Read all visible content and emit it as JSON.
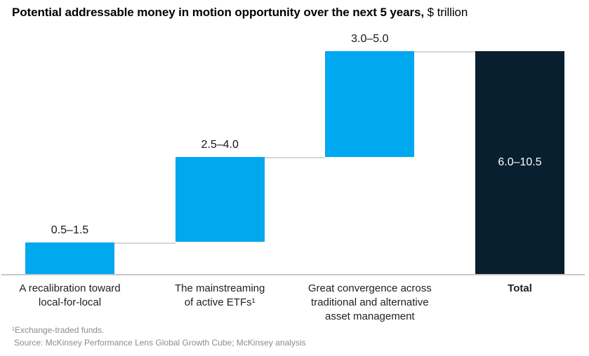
{
  "title": {
    "main": "Potential addressable money in motion opportunity over the next 5 years,",
    "unit": " $ trillion"
  },
  "chart_data": {
    "type": "bar",
    "subtype": "waterfall",
    "title": "Potential addressable money in motion opportunity over the next 5 years, $ trillion",
    "unit": "$ trillion",
    "ylim": [
      0,
      10.5
    ],
    "grid": false,
    "legend": "none",
    "scale_note": "cumulative stacking uses the high end of each range; total bar spans 0 to 10.5",
    "categories": [
      "A recalibration toward local-for-local",
      "The mainstreaming of active ETFs¹",
      "Great convergence across traditional and alternative asset management",
      "Total"
    ],
    "segments": [
      {
        "label_lines": [
          "A recalibration toward",
          "local-for-local"
        ],
        "value_label": "0.5–1.5",
        "low": 0.5,
        "high": 1.5,
        "is_total": false
      },
      {
        "label_lines": [
          "The mainstreaming",
          "of active ETFs¹"
        ],
        "value_label": "2.5–4.0",
        "low": 2.5,
        "high": 4.0,
        "is_total": false
      },
      {
        "label_lines": [
          "Great convergence across",
          "traditional and alternative",
          "asset management"
        ],
        "value_label": "3.0–5.0",
        "low": 3.0,
        "high": 5.0,
        "is_total": false
      },
      {
        "label_lines": [
          "Total"
        ],
        "value_label": "6.0–10.5",
        "low": 6.0,
        "high": 10.5,
        "is_total": true
      }
    ],
    "colors": {
      "segment": "#00a8f0",
      "total": "#081f2f",
      "connector": "#d6d6d6",
      "axis_line": "#c9c9c9",
      "value_label": "#161616",
      "value_label_on_total": "#ffffff"
    }
  },
  "footnotes": [
    "¹Exchange-traded funds.",
    "Source: McKinsey Performance Lens Global Growth Cube; McKinsey analysis"
  ]
}
